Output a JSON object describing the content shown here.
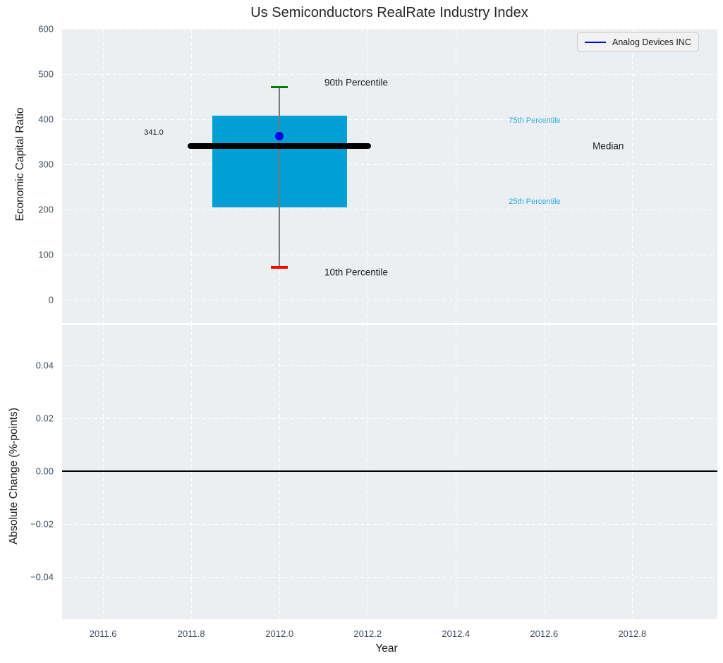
{
  "title": "Us Semiconductors RealRate Industry Index",
  "legend": {
    "label": "Analog Devices INC",
    "line_color": "#0000ee"
  },
  "colors": {
    "plot_bg": "#eceff1",
    "grid": "#ffffff",
    "tick_label": "#3c4e60",
    "axis_label": "#1a1a1a",
    "title": "#262626",
    "box_fill": "#00a0d4",
    "median_line": "#000000",
    "whisker": "#777777",
    "p90_cap": "#008000",
    "p10_cap": "#ff0000",
    "company_marker": "#0000ee",
    "percentile_label": "#29abe2",
    "zero_line": "#000000",
    "legend_bg": "#f2f2f2",
    "legend_border": "#cccccc"
  },
  "chart_data": [
    {
      "type": "boxplot",
      "title": "Us Semiconductors RealRate Industry Index",
      "ylabel": "Economic Capital Ratio",
      "xlabel": "Year",
      "ylim": [
        -52,
        600
      ],
      "yticks": [
        600,
        500,
        400,
        300,
        200,
        100,
        0
      ],
      "ytick_labels": [
        "600",
        "500",
        "400",
        "300",
        "200",
        "100",
        "0"
      ],
      "xlim": [
        2011.507,
        2012.993
      ],
      "xticks": [
        2011.6,
        2011.8,
        2012.0,
        2012.2,
        2012.4,
        2012.6,
        2012.8
      ],
      "xtick_labels": [
        "2011.6",
        "2011.8",
        "2012.0",
        "2012.2",
        "2012.4",
        "2012.6",
        "2012.8"
      ],
      "grid": true,
      "legend_position": "upper right",
      "series": [
        {
          "name": "Analog Devices INC",
          "x": [
            2012.0
          ],
          "values": [
            362
          ]
        }
      ],
      "box": {
        "x": 2012.0,
        "p10": 72,
        "p25": 205,
        "median": 341,
        "p75": 407,
        "p90": 471,
        "company_value": 362,
        "median_label": "341.0",
        "box_half_width": 0.153,
        "median_half_width": 0.208,
        "cap_half_width": 0.019
      },
      "annotations": [
        {
          "id": "90th-percentile",
          "text": "90th Percentile",
          "x": 2012.102,
          "y": 481,
          "color": "#1a1a1a",
          "size": 13.5,
          "anchor": "left"
        },
        {
          "id": "10th-percentile",
          "text": "10th Percentile",
          "x": 2012.102,
          "y": 61,
          "color": "#1a1a1a",
          "size": 13.5,
          "anchor": "left"
        },
        {
          "id": "median-value",
          "text": "341.0",
          "x": 2011.715,
          "y": 370,
          "color": "#1a1a1a",
          "size": 11,
          "anchor": "center"
        },
        {
          "id": "75th-percentile",
          "text": "75th Percentile",
          "x": 2012.52,
          "y": 397,
          "color": "#29abe2",
          "size": 11,
          "anchor": "left"
        },
        {
          "id": "25th-percentile",
          "text": "25th Percentile",
          "x": 2012.52,
          "y": 217,
          "color": "#29abe2",
          "size": 11,
          "anchor": "left"
        },
        {
          "id": "median-label",
          "text": "Median",
          "x": 2012.71,
          "y": 341,
          "color": "#1a1a1a",
          "size": 13.5,
          "anchor": "left"
        }
      ]
    },
    {
      "type": "line",
      "ylabel": "Absolute Change (%-points)",
      "ylim": [
        -0.056,
        0.0552
      ],
      "yticks": [
        0.04,
        0.02,
        0.0,
        -0.02,
        -0.04
      ],
      "ytick_labels": [
        "0.04",
        "0.02",
        "0.00",
        "−0.02",
        "−0.04"
      ],
      "grid": true,
      "zero_line": 0.0,
      "series": []
    }
  ]
}
